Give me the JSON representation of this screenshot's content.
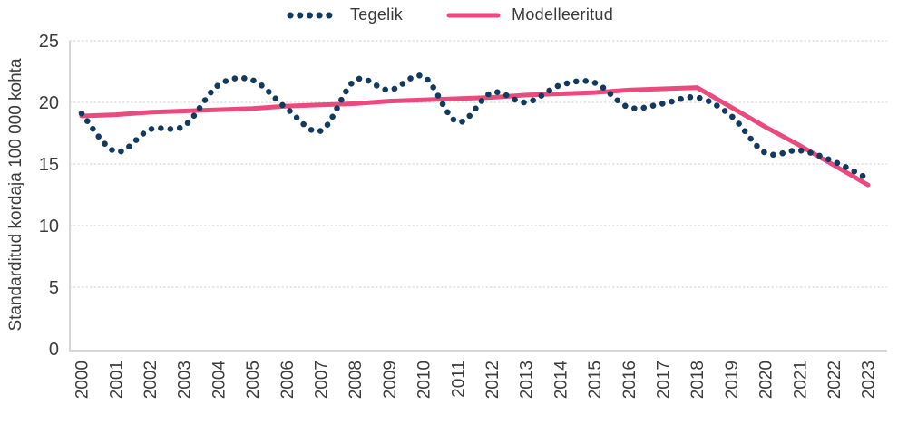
{
  "chart_data": {
    "type": "line",
    "title": "",
    "ylabel": "Standarditud kordaja 100 000 kohta",
    "xlabel": "",
    "ylim": [
      0,
      25
    ],
    "yticks": [
      0,
      5,
      10,
      15,
      20,
      25
    ],
    "grid": "dotted horizontal gridlines",
    "legend_position": "top-center",
    "x": [
      "2000",
      "2001",
      "2002",
      "2003",
      "2004",
      "2005",
      "2006",
      "2007",
      "2008",
      "2009",
      "2010",
      "2011",
      "2012",
      "2013",
      "2014",
      "2015",
      "2016",
      "2017",
      "2018",
      "2019",
      "2020",
      "2021",
      "2022",
      "2023"
    ],
    "series": [
      {
        "name": "Tegelik",
        "style": "dotted",
        "color": "#123a5f",
        "values": [
          19.1,
          16.0,
          17.8,
          18.1,
          21.4,
          21.8,
          19.5,
          17.7,
          21.8,
          21.0,
          22.1,
          18.4,
          20.8,
          20.0,
          21.4,
          21.6,
          19.6,
          19.9,
          20.4,
          18.9,
          15.9,
          16.1,
          15.2,
          13.8
        ]
      },
      {
        "name": "Modelleeritud",
        "style": "solid",
        "color": "#ea4a7d",
        "values": [
          18.9,
          19.0,
          19.2,
          19.3,
          19.4,
          19.5,
          19.7,
          19.8,
          19.9,
          20.1,
          20.2,
          20.3,
          20.4,
          20.6,
          20.7,
          20.8,
          21.0,
          21.1,
          21.2,
          19.6,
          18.0,
          16.5,
          14.9,
          13.3
        ]
      }
    ],
    "axis_color": "#d6d6d6",
    "grid_color": "#d9d9d9",
    "text_color": "#3c3c3c"
  }
}
